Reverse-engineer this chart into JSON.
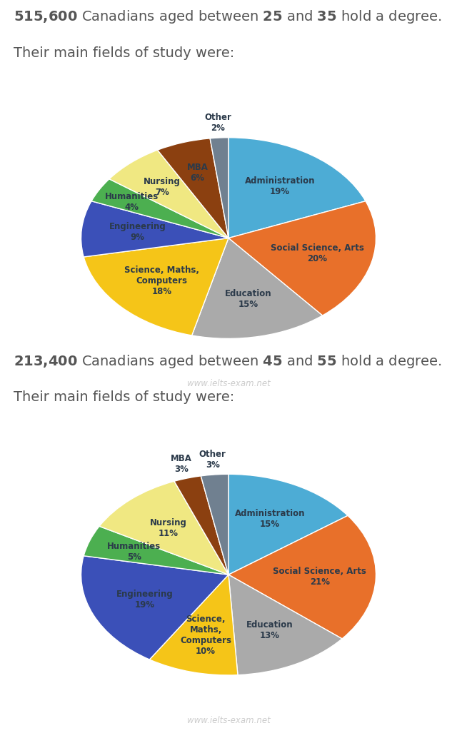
{
  "chart1": {
    "header_bold1": "515,600",
    "header_mid": " Canadians aged between ",
    "header_bold2": "25",
    "header_mid2": " and ",
    "header_bold3": "35",
    "header_end": " hold a degree.\nTheir main fields of study were:",
    "labels": [
      "Administration",
      "Social Science, Arts",
      "Education",
      "Science, Maths,\nComputers",
      "Engineering",
      "Humanities",
      "Nursing",
      "MBA",
      "Other"
    ],
    "values": [
      19,
      20,
      15,
      18,
      9,
      4,
      7,
      6,
      2
    ],
    "colors": [
      "#4DACD5",
      "#E8702A",
      "#AAAAAA",
      "#F5C518",
      "#3B50B8",
      "#4CAF50",
      "#F0E882",
      "#8B4010",
      "#708090"
    ],
    "watermark": "www.ielts-exam.net"
  },
  "chart2": {
    "header_bold1": "213,400",
    "header_mid": " Canadians aged between ",
    "header_bold2": "45",
    "header_mid2": " and ",
    "header_bold3": "55",
    "header_end": " hold a degree.\nTheir main fields of study were:",
    "labels": [
      "Administration",
      "Social Science, Arts",
      "Education",
      "Science,\nMaths,\nComputers",
      "Engineering",
      "Humanities",
      "Nursing",
      "MBA",
      "Other"
    ],
    "values": [
      15,
      21,
      13,
      10,
      19,
      5,
      11,
      3,
      3
    ],
    "colors": [
      "#4DACD5",
      "#E8702A",
      "#AAAAAA",
      "#F5C518",
      "#3B50B8",
      "#4CAF50",
      "#F0E882",
      "#8B4010",
      "#708090"
    ],
    "watermark": "www.ielts-exam.net"
  },
  "bg_color": "#FFFFFF",
  "text_color": "#555555",
  "label_color": "#2B3A4A",
  "header_fontsize": 14,
  "label_fontsize": 8.5,
  "watermark_color": "#CCCCCC"
}
